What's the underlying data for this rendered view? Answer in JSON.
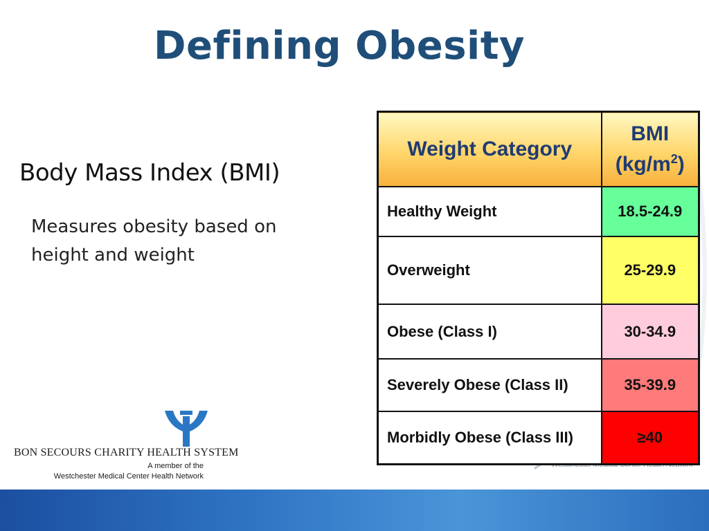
{
  "slide": {
    "title": "Defining Obesity",
    "subtitle": "Body Mass Index (BMI)",
    "description": "Measures obesity based on height and weight"
  },
  "table": {
    "header_category": "Weight Category",
    "header_bmi_line1": "BMI",
    "header_bmi_unit_pre": "(kg/m",
    "header_bmi_unit_sup": "2",
    "header_bmi_unit_post": ")",
    "rows": [
      {
        "category": "Healthy Weight",
        "bmi": "18.5-24.9",
        "color": "#66ff99"
      },
      {
        "category": "Overweight",
        "bmi": "25-29.9",
        "color": "#ffff66"
      },
      {
        "category": "Obese (Class I)",
        "bmi": "30-34.9",
        "color": "#ffccdd"
      },
      {
        "category": "Severely Obese (Class II)",
        "bmi": "35-39.9",
        "color": "#ff7a7a"
      },
      {
        "category": "Morbidly Obese (Class III)",
        "bmi": "≥40",
        "color": "#ff0000"
      }
    ]
  },
  "logo": {
    "name": "BON SECOURS CHARITY HEALTH SYSTEM",
    "member_line1": "A member of the",
    "member_line2": "Westchester Medical Center Health Network",
    "icon": "bon-secours-emblem-icon"
  },
  "watermark": {
    "text": "Westchester Medical Center Health Network"
  },
  "colors": {
    "title": "#1f4e79",
    "header_text": "#1f3b73",
    "bottom_bar": "#2f74c4"
  }
}
